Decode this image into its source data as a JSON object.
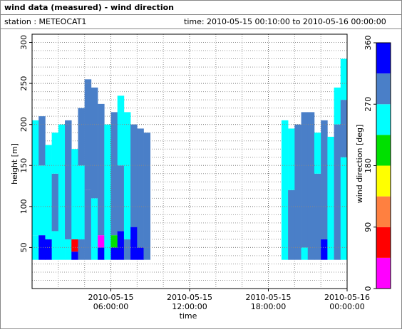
{
  "header": {
    "title": "wind data (measured) - wind direction",
    "station": "station : METEOCAT1",
    "time": "time: 2010-05-15 00:10:00 to 2010-05-16 00:00:00"
  },
  "chart_data": {
    "type": "heatmap",
    "x_label": "time",
    "y_label": "height [m]",
    "colorbar_label": "wind direction [deg]",
    "xlim": [
      0,
      24
    ],
    "xticks": [
      {
        "value": 6,
        "label": "2010-05-15 06:00:00"
      },
      {
        "value": 12,
        "label": "2010-05-15 12:00:00"
      },
      {
        "value": 18,
        "label": "2010-05-15 18:00:00"
      },
      {
        "value": 24,
        "label": "2010-05-16 00:00:00"
      }
    ],
    "ylim": [
      0,
      310
    ],
    "yticks": [
      50,
      100,
      150,
      200,
      250,
      300
    ],
    "grid": true,
    "clim": [
      0,
      360
    ],
    "cticks": [
      0,
      90,
      180,
      270,
      360
    ],
    "color_steps": [
      {
        "from": 0,
        "to": 45,
        "color": "#ff00ff"
      },
      {
        "from": 45,
        "to": 90,
        "color": "#ff0000"
      },
      {
        "from": 90,
        "to": 135,
        "color": "#ff8040"
      },
      {
        "from": 135,
        "to": 180,
        "color": "#ffff00"
      },
      {
        "from": 180,
        "to": 225,
        "color": "#00e000"
      },
      {
        "from": 225,
        "to": 270,
        "color": "#00ffff"
      },
      {
        "from": 270,
        "to": 315,
        "color": "#4a7fc8"
      },
      {
        "from": 315,
        "to": 360,
        "color": "#0000ff"
      }
    ],
    "columns": [
      {
        "start": 0,
        "end": 0.5,
        "segments": [
          [
            35,
            65,
            250
          ],
          [
            65,
            205,
            250
          ]
        ]
      },
      {
        "start": 0.5,
        "end": 1,
        "segments": [
          [
            35,
            65,
            330
          ],
          [
            65,
            150,
            250
          ],
          [
            150,
            210,
            290
          ]
        ]
      },
      {
        "start": 1,
        "end": 1.5,
        "segments": [
          [
            35,
            60,
            330
          ],
          [
            60,
            175,
            250
          ]
        ]
      },
      {
        "start": 1.5,
        "end": 2,
        "segments": [
          [
            35,
            70,
            250
          ],
          [
            70,
            140,
            290
          ],
          [
            140,
            190,
            250
          ]
        ]
      },
      {
        "start": 2,
        "end": 2.5,
        "segments": [
          [
            35,
            200,
            250
          ]
        ]
      },
      {
        "start": 2.5,
        "end": 3,
        "segments": [
          [
            35,
            60,
            250
          ],
          [
            60,
            205,
            290
          ]
        ]
      },
      {
        "start": 3,
        "end": 3.5,
        "segments": [
          [
            35,
            45,
            330
          ],
          [
            45,
            60,
            60
          ],
          [
            60,
            170,
            250
          ]
        ]
      },
      {
        "start": 3.5,
        "end": 4,
        "segments": [
          [
            35,
            60,
            290
          ],
          [
            60,
            150,
            250
          ],
          [
            150,
            220,
            290
          ]
        ]
      },
      {
        "start": 4,
        "end": 4.5,
        "segments": [
          [
            35,
            120,
            290
          ],
          [
            120,
            255,
            290
          ]
        ]
      },
      {
        "start": 4.5,
        "end": 5,
        "segments": [
          [
            35,
            110,
            250
          ],
          [
            110,
            245,
            290
          ]
        ]
      },
      {
        "start": 5,
        "end": 5.5,
        "segments": [
          [
            35,
            50,
            330
          ],
          [
            50,
            65,
            20
          ],
          [
            65,
            225,
            290
          ]
        ]
      },
      {
        "start": 5.5,
        "end": 6,
        "segments": [
          [
            35,
            60,
            250
          ],
          [
            60,
            200,
            250
          ]
        ]
      },
      {
        "start": 6,
        "end": 6.5,
        "segments": [
          [
            35,
            50,
            330
          ],
          [
            50,
            65,
            200
          ],
          [
            65,
            215,
            290
          ]
        ]
      },
      {
        "start": 6.5,
        "end": 7,
        "segments": [
          [
            35,
            70,
            330
          ],
          [
            70,
            150,
            290
          ],
          [
            150,
            235,
            250
          ]
        ]
      },
      {
        "start": 7,
        "end": 7.5,
        "segments": [
          [
            35,
            60,
            290
          ],
          [
            60,
            215,
            250
          ]
        ]
      },
      {
        "start": 7.5,
        "end": 8,
        "segments": [
          [
            35,
            75,
            330
          ],
          [
            75,
            200,
            290
          ]
        ]
      },
      {
        "start": 8,
        "end": 8.5,
        "segments": [
          [
            35,
            50,
            330
          ],
          [
            50,
            195,
            290
          ]
        ]
      },
      {
        "start": 8.5,
        "end": 9,
        "segments": [
          [
            35,
            190,
            290
          ]
        ]
      },
      {
        "start": 19,
        "end": 19.5,
        "segments": [
          [
            35,
            205,
            250
          ]
        ]
      },
      {
        "start": 19.5,
        "end": 20,
        "segments": [
          [
            35,
            120,
            290
          ],
          [
            120,
            195,
            250
          ]
        ]
      },
      {
        "start": 20,
        "end": 20.5,
        "segments": [
          [
            35,
            200,
            290
          ]
        ]
      },
      {
        "start": 20.5,
        "end": 21,
        "segments": [
          [
            35,
            50,
            250
          ],
          [
            50,
            215,
            290
          ]
        ]
      },
      {
        "start": 21,
        "end": 21.5,
        "segments": [
          [
            35,
            215,
            290
          ]
        ]
      },
      {
        "start": 21.5,
        "end": 22,
        "segments": [
          [
            35,
            140,
            290
          ],
          [
            140,
            190,
            250
          ]
        ]
      },
      {
        "start": 22,
        "end": 22.5,
        "segments": [
          [
            35,
            60,
            330
          ],
          [
            60,
            205,
            290
          ]
        ]
      },
      {
        "start": 22.5,
        "end": 23,
        "segments": [
          [
            35,
            185,
            250
          ]
        ]
      },
      {
        "start": 23,
        "end": 23.5,
        "segments": [
          [
            35,
            200,
            290
          ],
          [
            200,
            245,
            250
          ]
        ]
      },
      {
        "start": 23.5,
        "end": 24,
        "segments": [
          [
            35,
            160,
            250
          ],
          [
            160,
            230,
            290
          ],
          [
            230,
            280,
            250
          ]
        ]
      }
    ]
  }
}
